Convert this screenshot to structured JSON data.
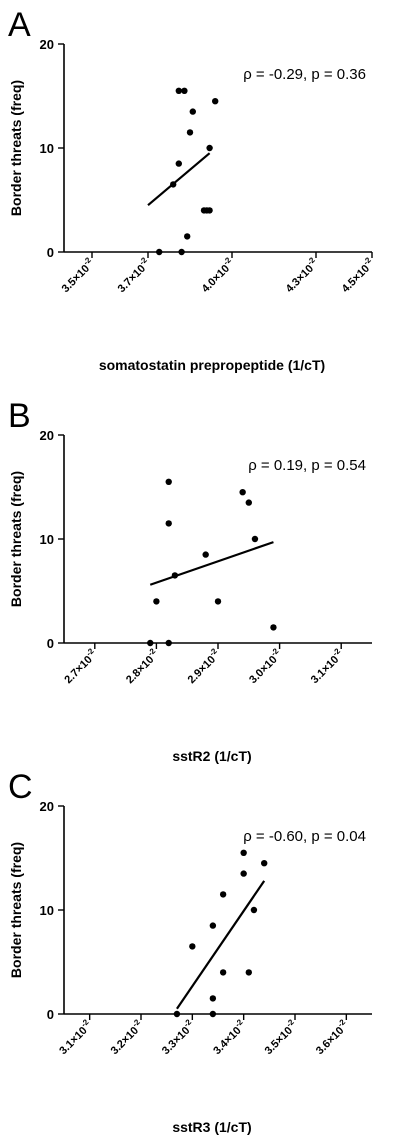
{
  "chart_data": [
    {
      "type": "scatter",
      "panel_label": "A",
      "xlabel": "somatostatin prepropeptide (1/cT)",
      "ylabel": "Border threats (freq)",
      "annotation": "ρ = -0.29, p = 0.36",
      "xlim": [
        0.034,
        0.045
      ],
      "ylim": [
        0,
        20
      ],
      "xticks": [
        0.035,
        0.037,
        0.04,
        0.043,
        0.045
      ],
      "xtick_labels": [
        {
          "mantissa": "3.5",
          "exp": "-2"
        },
        {
          "mantissa": "3.7",
          "exp": "-2"
        },
        {
          "mantissa": "4.0",
          "exp": "-2"
        },
        {
          "mantissa": "4.3",
          "exp": "-2"
        },
        {
          "mantissa": "4.5",
          "exp": "-2"
        }
      ],
      "yticks": [
        0,
        10,
        20
      ],
      "x": [
        0.0381,
        0.0383,
        0.0394,
        0.0392,
        0.0386,
        0.0385,
        0.039,
        0.0384,
        0.0381,
        0.0379,
        0.0392,
        0.0391,
        0.0374,
        0.0382
      ],
      "y": [
        15.5,
        15.5,
        14.5,
        10.0,
        13.5,
        11.5,
        4.0,
        1.5,
        8.5,
        6.5,
        4.0,
        4.0,
        0.0,
        0.0
      ],
      "fit": {
        "x": [
          0.037,
          0.0392
        ],
        "y": [
          4.5,
          9.5
        ]
      }
    },
    {
      "type": "scatter",
      "panel_label": "B",
      "xlabel": "sstR2 (1/cT)",
      "ylabel": "Border threats (freq)",
      "annotation": "ρ = 0.19, p = 0.54",
      "xlim": [
        0.0265,
        0.0315
      ],
      "ylim": [
        0,
        20
      ],
      "xticks": [
        0.027,
        0.028,
        0.029,
        0.03,
        0.031
      ],
      "xtick_labels": [
        {
          "mantissa": "2.7",
          "exp": "-2"
        },
        {
          "mantissa": "2.8",
          "exp": "-2"
        },
        {
          "mantissa": "2.9",
          "exp": "-2"
        },
        {
          "mantissa": "3.0",
          "exp": "-2"
        },
        {
          "mantissa": "3.1",
          "exp": "-2"
        }
      ],
      "yticks": [
        0,
        10,
        20
      ],
      "x": [
        0.0282,
        0.0294,
        0.0282,
        0.0295,
        0.0296,
        0.0288,
        0.0283,
        0.028,
        0.029,
        0.0279,
        0.0282,
        0.0299
      ],
      "y": [
        15.5,
        14.5,
        11.5,
        13.5,
        10.0,
        8.5,
        6.5,
        4.0,
        4.0,
        0.0,
        0.0,
        1.5
      ],
      "fit": {
        "x": [
          0.0279,
          0.0299
        ],
        "y": [
          5.6,
          9.7
        ]
      }
    },
    {
      "type": "scatter",
      "panel_label": "C",
      "xlabel": "sstR3 (1/cT)",
      "ylabel": "Border threats (freq)",
      "annotation": "ρ = -0.60, p = 0.04",
      "xlim": [
        0.0305,
        0.0365
      ],
      "ylim": [
        0,
        20
      ],
      "xticks": [
        0.031,
        0.032,
        0.033,
        0.034,
        0.035,
        0.036
      ],
      "xtick_labels": [
        {
          "mantissa": "3.1",
          "exp": "-2"
        },
        {
          "mantissa": "3.2",
          "exp": "-2"
        },
        {
          "mantissa": "3.3",
          "exp": "-2"
        },
        {
          "mantissa": "3.4",
          "exp": "-2"
        },
        {
          "mantissa": "3.5",
          "exp": "-2"
        },
        {
          "mantissa": "3.6",
          "exp": "-2"
        }
      ],
      "yticks": [
        0,
        10,
        20
      ],
      "x": [
        0.034,
        0.0344,
        0.034,
        0.0336,
        0.0342,
        0.0334,
        0.033,
        0.0336,
        0.0341,
        0.0334,
        0.0334,
        0.0327
      ],
      "y": [
        15.5,
        14.5,
        13.5,
        11.5,
        10.0,
        8.5,
        6.5,
        4.0,
        4.0,
        1.5,
        0.0,
        0.0
      ],
      "fit": {
        "x": [
          0.0327,
          0.0344
        ],
        "y": [
          0.5,
          12.8
        ]
      }
    }
  ]
}
